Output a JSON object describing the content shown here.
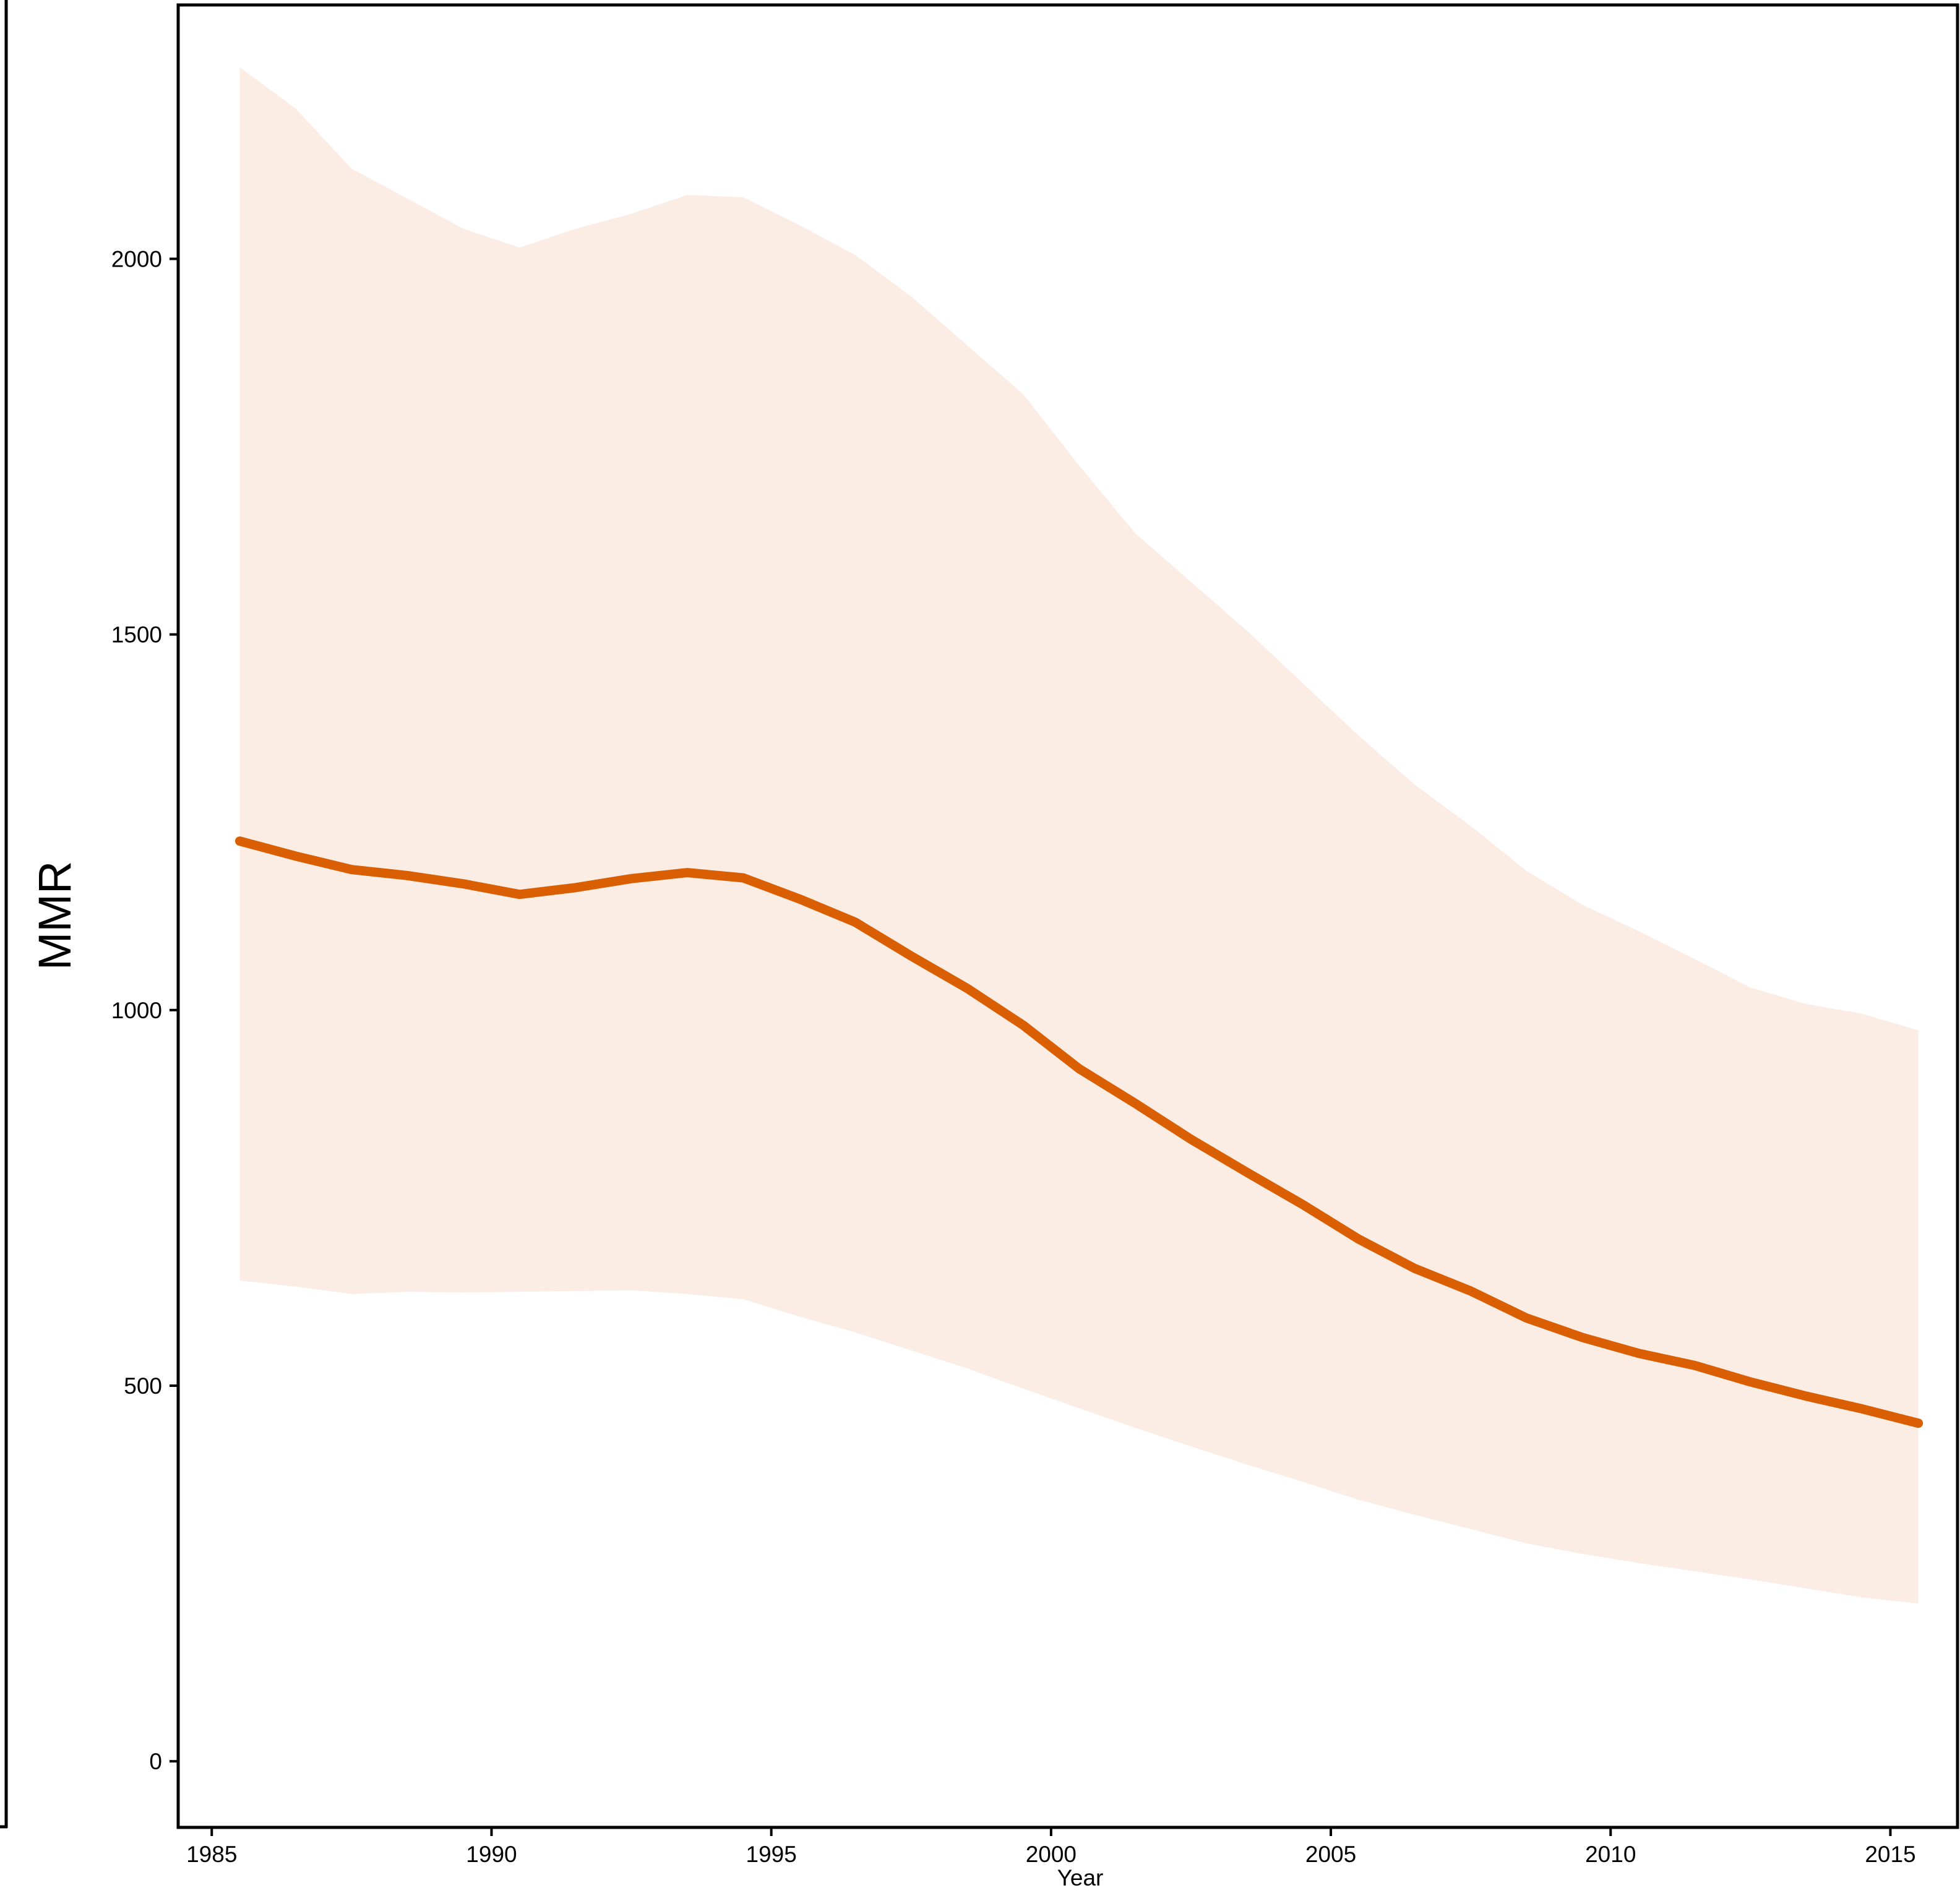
{
  "chart_data": {
    "type": "line",
    "title": "",
    "xlabel": "Year",
    "ylabel": "MMR",
    "xlim": [
      1984.4,
      2016.2
    ],
    "ylim": [
      -88,
      2338
    ],
    "x_ticks": [
      1985,
      1990,
      1995,
      2000,
      2005,
      2010,
      2015
    ],
    "y_ticks": [
      0,
      500,
      1000,
      1500,
      2000
    ],
    "grid": false,
    "legend": "none",
    "colors": {
      "line": "#d95f02",
      "band": "#fbece4"
    },
    "x": [
      1985.5,
      1986.5,
      1987.5,
      1988.5,
      1989.5,
      1990.5,
      1991.5,
      1992.5,
      1993.5,
      1994.5,
      1995.5,
      1996.5,
      1997.5,
      1998.5,
      1999.5,
      2000.5,
      2001.5,
      2002.5,
      2003.5,
      2004.5,
      2005.5,
      2006.5,
      2007.5,
      2008.5,
      2009.5,
      2010.5,
      2011.5,
      2012.5,
      2013.5,
      2014.5,
      2015.5
    ],
    "series": [
      {
        "values": [
          1225,
          1205,
          1187,
          1179,
          1168,
          1154,
          1163,
          1175,
          1183,
          1176,
          1148,
          1117,
          1072,
          1029,
          980,
          922,
          876,
          828,
          784,
          741,
          695,
          656,
          626,
          590,
          564,
          543,
          527,
          505,
          486,
          469,
          450
        ]
      }
    ],
    "interval": {
      "upper": [
        2255,
        2200,
        2120,
        2080,
        2040,
        2015,
        2040,
        2060,
        2085,
        2082,
        2045,
        2005,
        1950,
        1885,
        1820,
        1725,
        1635,
        1570,
        1505,
        1435,
        1365,
        1300,
        1245,
        1185,
        1140,
        1105,
        1068,
        1030,
        1008,
        995,
        973
      ],
      "lower": [
        640,
        632,
        622,
        625,
        624,
        625,
        626,
        627,
        622,
        615,
        592,
        571,
        547,
        523,
        496,
        470,
        444,
        419,
        395,
        372,
        348,
        328,
        309,
        290,
        276,
        264,
        253,
        242,
        230,
        218,
        210
      ]
    }
  }
}
